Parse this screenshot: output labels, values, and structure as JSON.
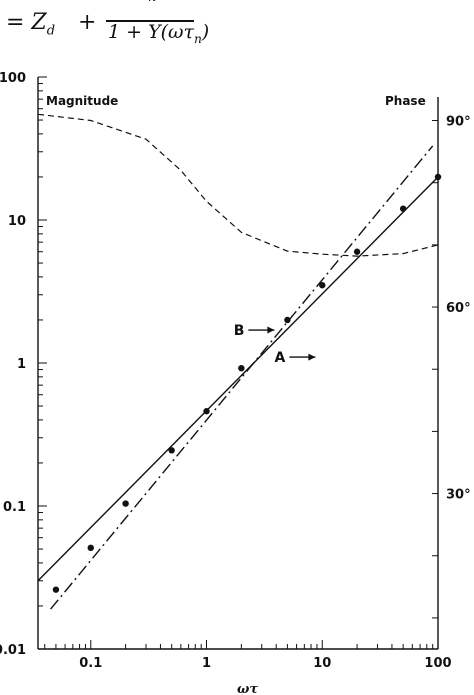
{
  "formula": {
    "lhs": "= Z",
    "lhs_sub": "d",
    "plus": "+",
    "numerator_fragment": "n",
    "denominator": "1 + Y(ωτ",
    "denominator_sub": "n",
    "denominator_close": ")"
  },
  "chart_data": {
    "type": "line",
    "x_scale": "log",
    "y_scale": "log",
    "xlim": [
      0.035,
      100
    ],
    "ylim": [
      0.01,
      100
    ],
    "x_ticks": [
      {
        "value": 0.1,
        "label": "0.1"
      },
      {
        "value": 1,
        "label": "1"
      },
      {
        "value": 10,
        "label": "10"
      },
      {
        "value": 100,
        "label": "100"
      }
    ],
    "y_ticks": [
      {
        "value": 0.01,
        "label": "0.01"
      },
      {
        "value": 0.1,
        "label": "0.1"
      },
      {
        "value": 1,
        "label": "1"
      },
      {
        "value": 10,
        "label": "10"
      },
      {
        "value": 100,
        "label": "100"
      }
    ],
    "left_axis_label": "Magnitude",
    "right_axis_label": "Phase",
    "right_ticks": [
      {
        "value": 90,
        "label": "90°"
      },
      {
        "value": 60,
        "label": "60°"
      },
      {
        "value": 30,
        "label": "30°"
      }
    ],
    "right_lim": [
      5,
      97
    ],
    "xlabel": "ωτ",
    "grid": false,
    "series": [
      {
        "name": "A",
        "style": "solid",
        "x": [
          0.035,
          100
        ],
        "y": [
          0.03,
          20
        ]
      },
      {
        "name": "B",
        "style": "dashdot",
        "x": [
          0.045,
          90
        ],
        "y": [
          0.019,
          33
        ]
      },
      {
        "style": "markers",
        "x": [
          0.05,
          0.1,
          0.2,
          0.5,
          1,
          2,
          5,
          10,
          20,
          50,
          100
        ],
        "y": [
          0.026,
          0.051,
          0.104,
          0.245,
          0.46,
          0.92,
          2.0,
          3.5,
          6.0,
          12.0,
          20.0
        ]
      },
      {
        "style": "dashed",
        "axis": "phase",
        "x": [
          0.035,
          0.1,
          0.3,
          0.6,
          1,
          2,
          5,
          10,
          20,
          50,
          100
        ],
        "y": [
          91,
          90,
          87,
          82,
          77,
          72,
          69,
          68.5,
          68.2,
          68.6,
          70
        ]
      }
    ],
    "annotations": [
      {
        "text": "B",
        "x": 2.3,
        "y": 1.7
      },
      {
        "text": "A",
        "x": 5.2,
        "y": 1.1
      }
    ]
  }
}
